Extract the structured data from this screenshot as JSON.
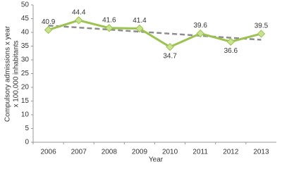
{
  "chart_data": {
    "type": "line",
    "categories": [
      "2006",
      "2007",
      "2008",
      "2009",
      "2010",
      "2011",
      "2012",
      "2013"
    ],
    "series": [
      {
        "color": "#9cc24f",
        "marker_fill": "#c9e28f",
        "values": [
          40.9,
          44.4,
          41.6,
          41.4,
          34.7,
          39.6,
          36.6,
          39.5
        ]
      }
    ],
    "trendline": {
      "color": "#8c8c8c",
      "dashed": true,
      "values": [
        42.5,
        37.3
      ]
    },
    "ylim": [
      0,
      50
    ],
    "yticks": [
      0,
      5,
      10,
      15,
      20,
      25,
      30,
      35,
      40,
      45,
      50
    ],
    "x_label": "Year",
    "y_label": [
      "Compulsory admissions x year",
      "x 100,000 inhabitants"
    ],
    "grid": false
  }
}
